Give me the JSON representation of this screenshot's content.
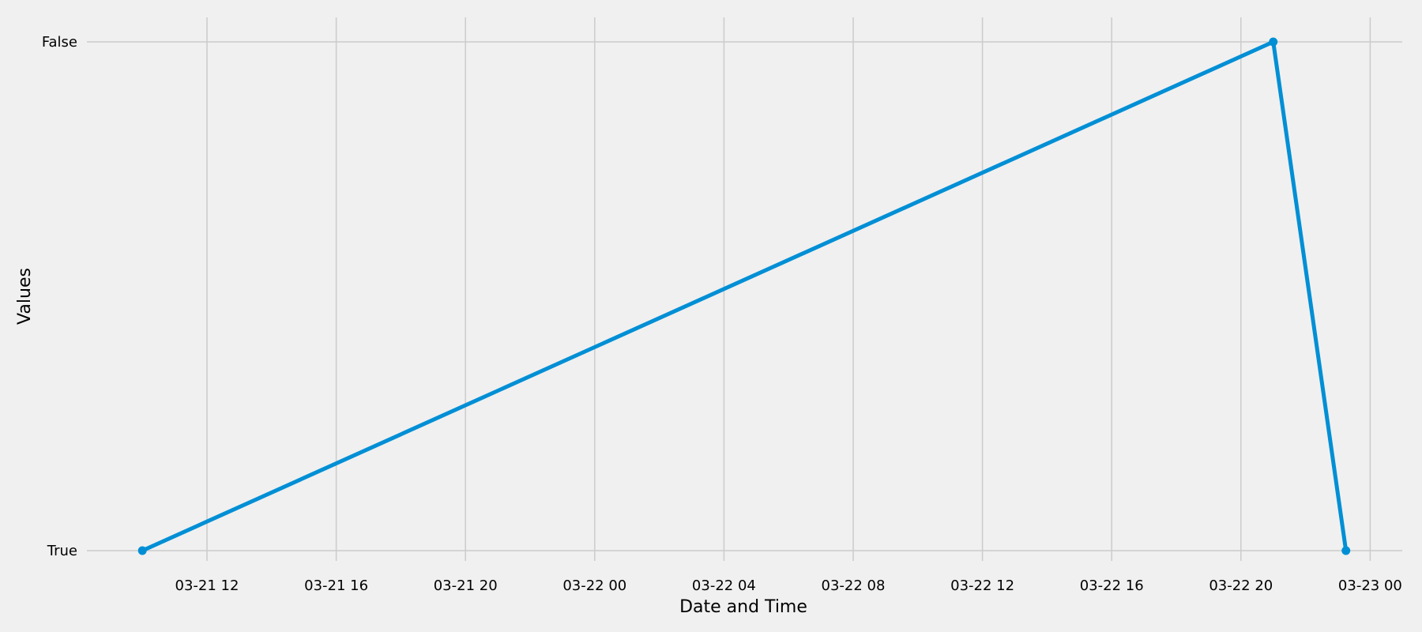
{
  "chart_data": {
    "type": "line",
    "title": "",
    "xlabel": "Date and Time",
    "ylabel": "Values",
    "grid": true,
    "x_ticks": [
      "03-21 12",
      "03-21 16",
      "03-21 20",
      "03-22 00",
      "03-22 04",
      "03-22 08",
      "03-22 12",
      "03-22 16",
      "03-22 20",
      "03-23 00"
    ],
    "y_ticks": [
      "True",
      "False"
    ],
    "series": [
      {
        "points": [
          {
            "x": "2024-03-21 10:00",
            "y": "True"
          },
          {
            "x": "2024-03-22 21:00",
            "y": "False"
          },
          {
            "x": "2024-03-22 23:15",
            "y": "True"
          }
        ]
      }
    ],
    "colors": {
      "background": "#f0f0f0",
      "line": "#008fd5",
      "grid": "#cbcbcb",
      "text": "#000000"
    }
  }
}
